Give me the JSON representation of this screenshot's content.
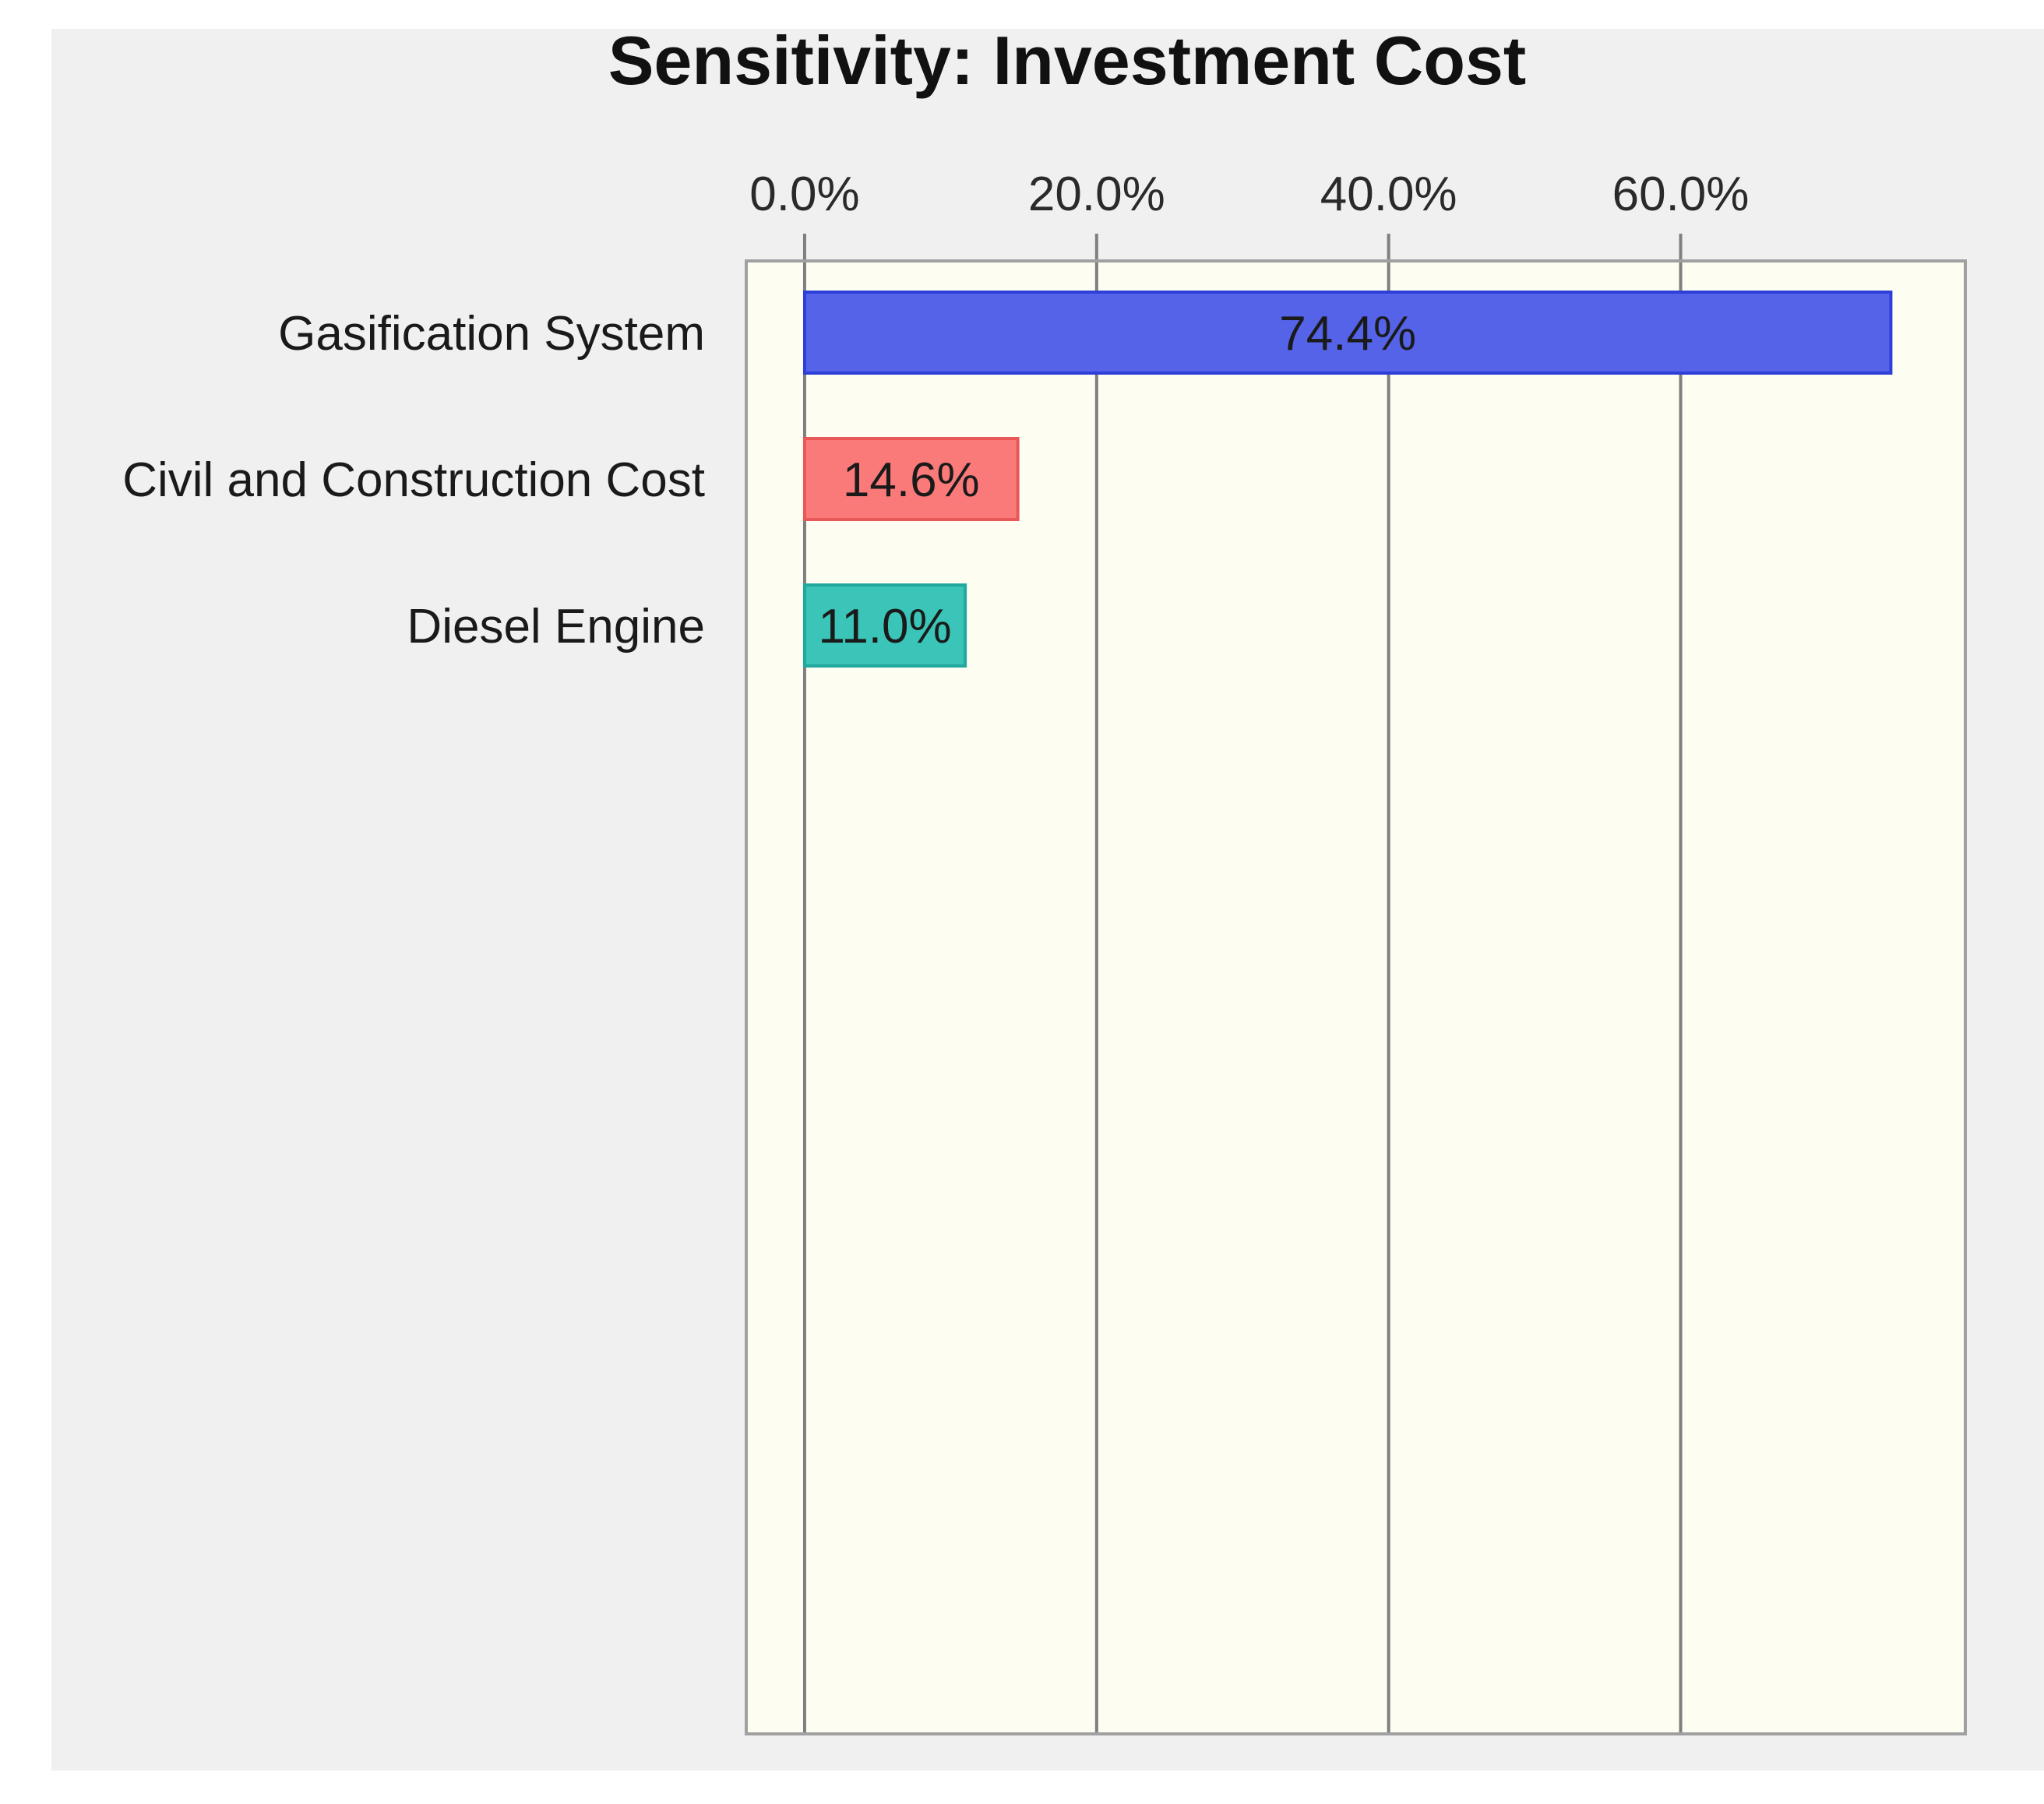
{
  "chart_data": {
    "type": "bar",
    "orientation": "horizontal",
    "title": "Sensitivity: Investment Cost",
    "categories": [
      "Gasification System",
      "Civil and Construction Cost",
      "Diesel Engine"
    ],
    "values": [
      74.4,
      14.6,
      11.0
    ],
    "value_labels": [
      "74.4%",
      "14.6%",
      "11.0%"
    ],
    "x_ticks": [
      0,
      20,
      40,
      60
    ],
    "x_tick_labels": [
      "0.0%",
      "20.0%",
      "40.0%",
      "60.0%"
    ],
    "xlim": [
      -4,
      79.5
    ],
    "x_axis_position": "top",
    "grid": true,
    "legend": "none",
    "colors": {
      "bars": [
        "#5563E8",
        "#FA7A7A",
        "#3BC4B8"
      ],
      "bar_edges": [
        "#2E3FD9",
        "#E85858",
        "#22A89C"
      ],
      "page_background": "#F0F0F0",
      "plot_background": "#FEFDF1",
      "gridline": "#7F7F7F",
      "frame": "#A0A0A0"
    }
  }
}
